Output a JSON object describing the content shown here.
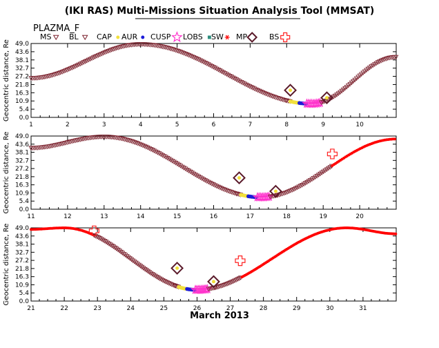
{
  "page": {
    "title": "(IKI RAS) Multi-Missions Situation Analysis Tool (MMSAT)",
    "satellite": "PLAZMA_F",
    "month_label": "March 2013"
  },
  "legend": [
    {
      "label": "MS",
      "color": "#7a1f2b",
      "icon": "triangle-down-icon"
    },
    {
      "label": "BL",
      "color": "#7a1f2b",
      "icon": "triangle-down-icon"
    },
    {
      "label": "CAP",
      "color": "#f2e03c",
      "icon": "dot-icon"
    },
    {
      "label": "AUR",
      "color": "#1c1cd8",
      "icon": "dot-icon"
    },
    {
      "label": "CUSP",
      "color": "#ff33cc",
      "icon": "star-icon"
    },
    {
      "label": "LOBS",
      "color": "#2f8f7f",
      "icon": "square-icon"
    },
    {
      "label": "SW",
      "color": "#ff0000",
      "icon": "asterisk-icon"
    },
    {
      "label": "MP",
      "color": "#5a1a2a",
      "icon": "diamond-icon"
    },
    {
      "label": "BS",
      "color": "#ff2020",
      "icon": "cross-icon"
    }
  ],
  "chart_data": [
    {
      "type": "scatter",
      "ylabel": "Geocentric distance, Re",
      "xlim": [
        1,
        11
      ],
      "ylim": [
        0,
        49
      ],
      "ytick_labels": [
        "0.0",
        "5.4",
        "10.9",
        "16.3",
        "21.8",
        "27.2",
        "32.7",
        "38.1",
        "43.6",
        "49.0"
      ],
      "xtick_labels": [
        "1",
        "2",
        "3",
        "4",
        "5",
        "6",
        "7",
        "8",
        "9",
        "10"
      ],
      "orbit": {
        "t": [
          1.0,
          4.0,
          8.7,
          11.0
        ],
        "r": [
          26,
          48.5,
          9,
          40
        ]
      },
      "segments": [
        {
          "region": "MS",
          "from": 1.0,
          "to": 8.0
        },
        {
          "region": "MP",
          "from": 8.0,
          "to": 8.1
        },
        {
          "region": "CAP",
          "from": 8.1,
          "to": 8.35
        },
        {
          "region": "AUR",
          "from": 8.35,
          "to": 8.55
        },
        {
          "region": "CUSP",
          "from": 8.55,
          "to": 8.95
        },
        {
          "region": "MP",
          "from": 8.95,
          "to": 9.15
        },
        {
          "region": "MS",
          "from": 9.15,
          "to": 11.0
        }
      ],
      "markers": [
        {
          "type": "MP",
          "t": 8.1,
          "r": 18
        },
        {
          "type": "MP",
          "t": 9.1,
          "r": 13
        }
      ]
    },
    {
      "type": "scatter",
      "ylabel": "Geocentric distance, Re",
      "xlim": [
        11,
        21
      ],
      "ylim": [
        0,
        49
      ],
      "ytick_labels": [
        "0.0",
        "5.4",
        "10.9",
        "16.3",
        "21.8",
        "27.2",
        "32.7",
        "38.1",
        "43.6",
        "49.0"
      ],
      "xtick_labels": [
        "11",
        "12",
        "13",
        "14",
        "15",
        "16",
        "17",
        "18",
        "19",
        "20"
      ],
      "orbit": {
        "t": [
          11.0,
          13.0,
          17.3,
          21.0
        ],
        "r": [
          41,
          48.5,
          8,
          47
        ]
      },
      "segments": [
        {
          "region": "MS",
          "from": 11.0,
          "to": 16.65
        },
        {
          "region": "MP",
          "from": 16.65,
          "to": 16.75
        },
        {
          "region": "CAP",
          "from": 16.75,
          "to": 16.95
        },
        {
          "region": "AUR",
          "from": 16.95,
          "to": 17.2
        },
        {
          "region": "CUSP",
          "from": 17.2,
          "to": 17.55
        },
        {
          "region": "MP",
          "from": 17.55,
          "to": 17.75
        },
        {
          "region": "MS",
          "from": 17.75,
          "to": 19.25
        },
        {
          "region": "SW",
          "from": 19.25,
          "to": 21.0
        }
      ],
      "markers": [
        {
          "type": "MP",
          "t": 16.7,
          "r": 21
        },
        {
          "type": "MP",
          "t": 17.7,
          "r": 12
        },
        {
          "type": "BS",
          "t": 19.25,
          "r": 37
        }
      ]
    },
    {
      "type": "scatter",
      "ylabel": "Geocentric distance, Re",
      "xlim": [
        21,
        32
      ],
      "ylim": [
        0,
        49
      ],
      "ytick_labels": [
        "0.0",
        "5.4",
        "10.9",
        "16.3",
        "21.8",
        "27.2",
        "32.7",
        "38.1",
        "43.6",
        "49.0"
      ],
      "xtick_labels": [
        "21",
        "22",
        "23",
        "24",
        "25",
        "26",
        "27",
        "28",
        "29",
        "30",
        "31"
      ],
      "orbit": {
        "t": [
          21.0,
          22.0,
          26.0,
          30.5,
          32.0
        ],
        "r": [
          48,
          49,
          7.5,
          49,
          45
        ]
      },
      "segments": [
        {
          "region": "SW",
          "from": 21.0,
          "to": 22.9
        },
        {
          "region": "MS",
          "from": 22.9,
          "to": 25.35
        },
        {
          "region": "MP",
          "from": 25.35,
          "to": 25.45
        },
        {
          "region": "CAP",
          "from": 25.45,
          "to": 25.7
        },
        {
          "region": "AUR",
          "from": 25.7,
          "to": 25.95
        },
        {
          "region": "CUSP",
          "from": 25.95,
          "to": 26.35
        },
        {
          "region": "MP",
          "from": 26.35,
          "to": 26.55
        },
        {
          "region": "MS",
          "from": 26.55,
          "to": 27.35
        },
        {
          "region": "SW",
          "from": 27.35,
          "to": 32.0
        }
      ],
      "markers": [
        {
          "type": "BS",
          "t": 22.9,
          "r": 47
        },
        {
          "type": "MP",
          "t": 25.4,
          "r": 22
        },
        {
          "type": "MP",
          "t": 26.5,
          "r": 13
        },
        {
          "type": "BS",
          "t": 27.3,
          "r": 27
        }
      ]
    }
  ]
}
